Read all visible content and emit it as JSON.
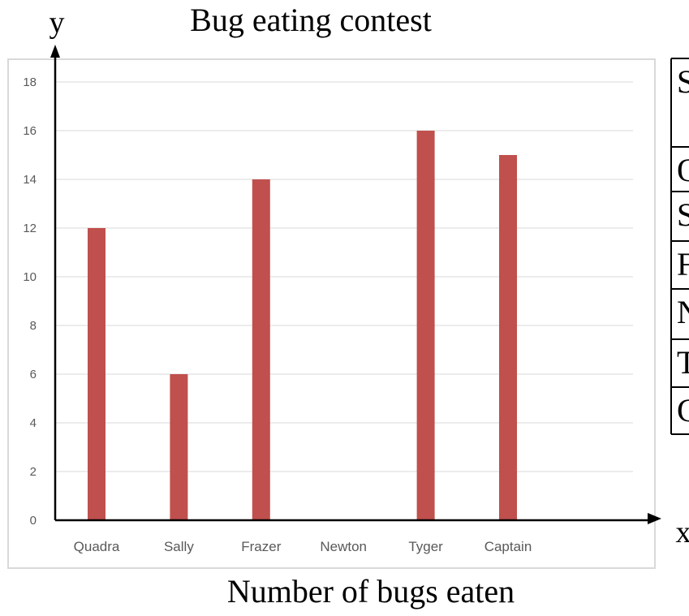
{
  "chart_data": {
    "type": "bar",
    "title": "Bug eating contest",
    "xlabel": "Number of bugs eaten",
    "x_axis_letter": "x",
    "y_axis_letter": "y",
    "categories": [
      "Quadra",
      "Sally",
      "Frazer",
      "Newton",
      "Tyger",
      "Captain"
    ],
    "values": [
      12,
      6,
      14,
      0,
      16,
      15
    ],
    "ylim": [
      0,
      18
    ],
    "yticks": [
      0,
      2,
      4,
      6,
      8,
      10,
      12,
      14,
      16,
      18
    ],
    "grid": true,
    "bar_color": "#c0504d"
  },
  "side_table": {
    "rows": [
      "S",
      "Q",
      "S",
      "F",
      "N",
      "T",
      "C"
    ]
  }
}
